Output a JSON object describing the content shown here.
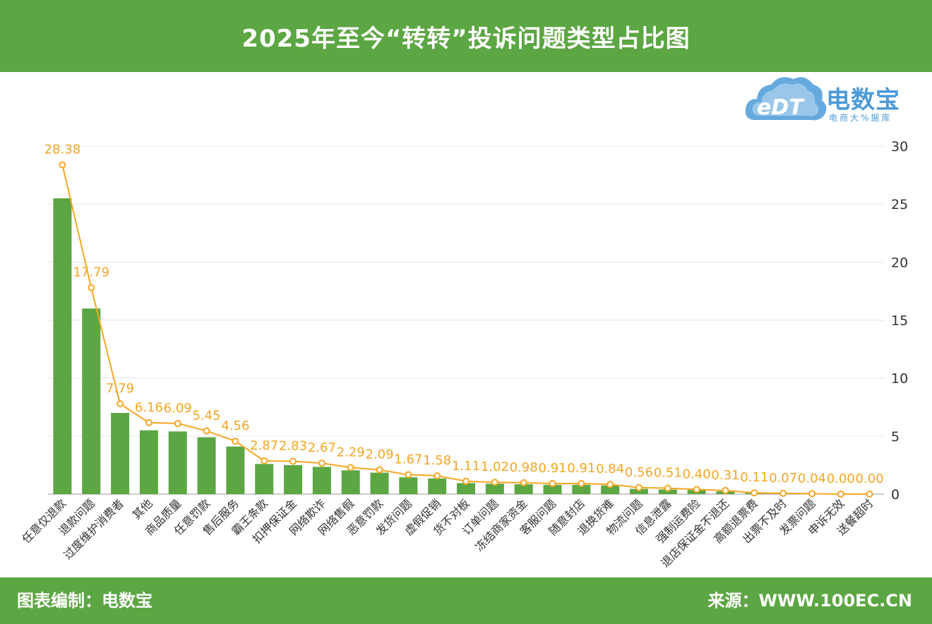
{
  "header": {
    "title": "2025年至今“转转”投诉问题类型占比图"
  },
  "logo": {
    "brand": "电数宝",
    "sub": "电商大%据库",
    "mark": "eDT",
    "icon": "cloud-logo-icon"
  },
  "footer": {
    "left": "图表编制：电数宝",
    "right": "来源：WWW.100EC.CN"
  },
  "colors": {
    "bar": "#5ca643",
    "line": "#f5a623",
    "header": "#5ca643",
    "label": "#f5a623",
    "axis": "#333333"
  },
  "chart_data": {
    "type": "bar",
    "categories": [
      "任意仅退款",
      "退款问题",
      "过度维护消费者",
      "其他",
      "商品质量",
      "任意罚款",
      "售后服务",
      "霸王条款",
      "扣押保证金",
      "网络欺诈",
      "网络售假",
      "恶意罚款",
      "发货问题",
      "虚假促销",
      "货不对板",
      "订单问题",
      "冻结商家资金",
      "客服问题",
      "随意封店",
      "退换货难",
      "物流问题",
      "信息泄露",
      "强制运费险",
      "退店保证金不退还",
      "高额退票费",
      "出票不及时",
      "发票问题",
      "申诉无效",
      "送餐超时"
    ],
    "series": [
      {
        "type": "bar",
        "values": [
          25.5,
          16.0,
          7.0,
          5.5,
          5.4,
          4.9,
          4.1,
          2.6,
          2.5,
          2.35,
          2.05,
          1.85,
          1.45,
          1.35,
          0.95,
          0.9,
          0.85,
          0.8,
          0.8,
          0.75,
          0.45,
          0.4,
          0.35,
          0.25,
          0.1,
          0.06,
          0.03,
          0.0,
          0.0
        ]
      },
      {
        "type": "line",
        "values": [
          28.38,
          17.79,
          7.79,
          6.16,
          6.09,
          5.45,
          4.56,
          2.87,
          2.83,
          2.67,
          2.29,
          2.09,
          1.67,
          1.58,
          1.11,
          1.02,
          0.98,
          0.91,
          0.91,
          0.84,
          0.56,
          0.51,
          0.4,
          0.31,
          0.11,
          0.07,
          0.04,
          0.0,
          0.0
        ]
      }
    ],
    "data_labels": [
      "28.38",
      "17.79",
      "7.79",
      "6.16",
      "6.09",
      "5.45",
      "4.56",
      "2.87",
      "2.83",
      "2.67",
      "2.29",
      "2.09",
      "1.67",
      "1.58",
      "1.11",
      "1.02",
      "0.98",
      "0.91",
      "0.91",
      "0.84",
      "0.56",
      "0.51",
      "0.40",
      "0.31",
      "0.11",
      "0.07",
      "0.04",
      "0.00",
      "0.00"
    ],
    "y_ticks": [
      "0",
      "5",
      "10",
      "15",
      "20",
      "25",
      "30"
    ],
    "ylim": [
      0,
      30
    ],
    "y_axis_side": "right",
    "grid": true
  }
}
